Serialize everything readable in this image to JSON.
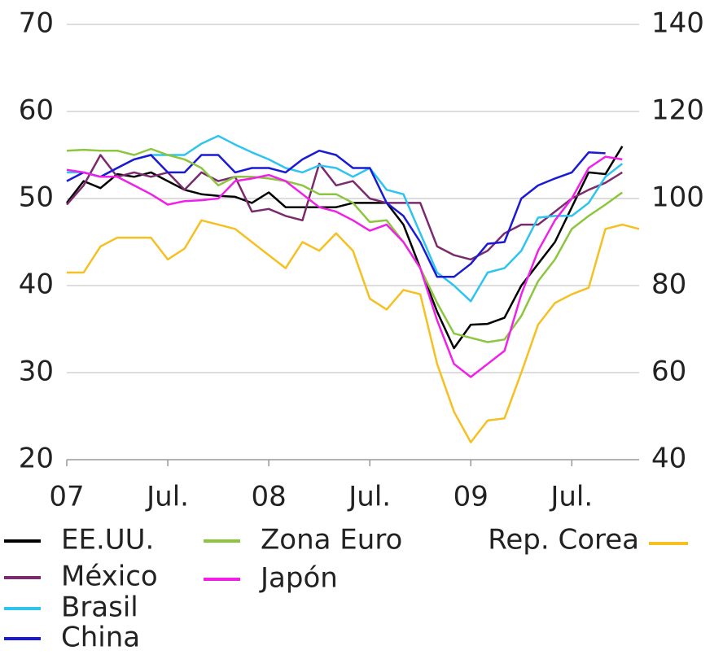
{
  "chart_data": {
    "type": "line",
    "categories": [
      "07",
      null,
      null,
      null,
      null,
      null,
      "Jul.",
      null,
      null,
      null,
      null,
      null,
      "08",
      null,
      null,
      null,
      null,
      null,
      "Jul.",
      null,
      null,
      null,
      null,
      null,
      "09",
      null,
      null,
      null,
      null,
      null,
      "Jul.",
      null,
      null,
      null,
      null
    ],
    "ylim": [
      20,
      70
    ],
    "yticks": [
      20,
      30,
      40,
      50,
      60,
      70
    ],
    "y2lim": [
      40,
      140
    ],
    "y2ticks": [
      40,
      60,
      80,
      100,
      120,
      140
    ],
    "grid": true,
    "series": [
      {
        "name": "EE.UU.",
        "color": "#000000",
        "values": [
          49.5,
          52,
          51.2,
          52.8,
          52.5,
          53,
          52,
          51,
          50.5,
          50.3,
          50.2,
          49.5,
          50.7,
          49,
          49,
          49,
          49,
          49.5,
          49.5,
          49.5,
          47,
          42,
          37,
          32.8,
          35.5,
          35.6,
          36.3,
          40,
          42.5,
          45,
          49,
          53,
          52.8,
          56,
          null
        ]
      },
      {
        "name": "México",
        "color": "#7b2a6e",
        "values": [
          49.3,
          51.5,
          55,
          52.5,
          53,
          52.5,
          53,
          51,
          53,
          52,
          52.5,
          48.5,
          48.8,
          48,
          47.5,
          54,
          51.5,
          52,
          50,
          49.5,
          49.5,
          49.5,
          44.5,
          43.5,
          43,
          44,
          46,
          47,
          47,
          48.5,
          50,
          51,
          51.8,
          53,
          null
        ]
      },
      {
        "name": "Brasil",
        "color": "#2ec4f0",
        "values": [
          53,
          53,
          52.5,
          53.5,
          54.5,
          55,
          55,
          55,
          56.3,
          57.2,
          56.2,
          55.3,
          54.5,
          53.5,
          53,
          53.8,
          53.5,
          52.5,
          53.5,
          51,
          50.5,
          46,
          41.5,
          40,
          38.2,
          41.5,
          42,
          44,
          47.8,
          48,
          48,
          49.5,
          52.5,
          54,
          null
        ]
      },
      {
        "name": "China",
        "color": "#1a1ad6",
        "values": [
          52,
          53,
          52.5,
          53.5,
          54.5,
          55,
          53,
          53,
          55,
          55,
          53,
          53.5,
          53.5,
          53,
          54.5,
          55.5,
          55,
          53.5,
          53.5,
          49.5,
          48,
          45,
          41,
          41,
          42.5,
          44.8,
          45,
          50,
          51.5,
          52.3,
          53,
          55.3,
          55.2,
          null,
          null
        ]
      },
      {
        "name": "Zona Euro",
        "color": "#8cc63f",
        "values": [
          55.5,
          55.6,
          55.5,
          55.5,
          55,
          55.7,
          55,
          54.5,
          53.5,
          51.5,
          52.5,
          52.5,
          52.3,
          52,
          51.5,
          50.5,
          50.5,
          49.5,
          47.3,
          47.5,
          45,
          42,
          38,
          34.5,
          34,
          33.5,
          33.8,
          36.5,
          40.5,
          43,
          46.5,
          48,
          49.3,
          50.7,
          null
        ]
      },
      {
        "name": "Japón",
        "color": "#f020e8",
        "values": [
          53.3,
          53,
          52.5,
          52.5,
          51.5,
          50.5,
          49.3,
          49.7,
          49.8,
          50,
          52,
          52.3,
          52.7,
          52,
          50.5,
          49,
          48.5,
          47.5,
          46.3,
          47,
          45,
          42,
          36,
          31,
          29.5,
          31,
          32.5,
          39,
          44,
          47.5,
          50,
          53.5,
          54.8,
          54.5,
          null
        ]
      },
      {
        "name": "Rep. Corea",
        "color": "#f5c022",
        "axis": "y2",
        "values": [
          83,
          83,
          89,
          91,
          91,
          91,
          86,
          88.5,
          95,
          94,
          93,
          90,
          87,
          84,
          90,
          88,
          92,
          88,
          77,
          74.5,
          79,
          78,
          62,
          51,
          44,
          49,
          49.5,
          60,
          71,
          76,
          78,
          79.5,
          93,
          94,
          93
        ]
      }
    ]
  }
}
